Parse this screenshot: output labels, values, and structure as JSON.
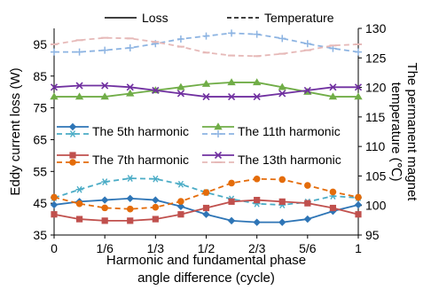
{
  "chart_data": {
    "type": "line",
    "xlabel_lines": [
      "Harmonic and fundamental phase",
      "angle difference (cycle)"
    ],
    "ylabel_left": "Eddy current loss (W)",
    "ylabel_right_lines": [
      "The permanent magnet",
      "temperature (℃)"
    ],
    "x_ticks": [
      {
        "value": 0,
        "label": "0"
      },
      {
        "value": 0.1667,
        "label": "1/6"
      },
      {
        "value": 0.3333,
        "label": "1/3"
      },
      {
        "value": 0.5,
        "label": "1/2"
      },
      {
        "value": 0.6667,
        "label": "2/3"
      },
      {
        "value": 0.8333,
        "label": "5/6"
      },
      {
        "value": 1,
        "label": "1"
      }
    ],
    "xlim": [
      0,
      1
    ],
    "ylim_left": [
      35,
      100
    ],
    "ylim_right": [
      95,
      130
    ],
    "left_ticks": [
      35,
      45,
      55,
      65,
      75,
      85,
      95
    ],
    "right_ticks": [
      95,
      100,
      105,
      110,
      115,
      120,
      125,
      130
    ],
    "style_legend": [
      {
        "label": "Loss",
        "dash": "solid"
      },
      {
        "label": "Temperature",
        "dash": "dashed"
      }
    ],
    "series_legend_rows": [
      [
        {
          "label": "The 5th harmonic",
          "color": "#2E75B6",
          "marker": "diamond"
        },
        {
          "label": "The 11th harmonic",
          "color": "#70AD47",
          "marker": "triangle"
        }
      ],
      [
        {
          "label": "The 7th harmonic",
          "color": "#C0504D",
          "marker": "square"
        },
        {
          "label": "The 13th harmonic",
          "color": "#7030A0",
          "marker": "x"
        }
      ]
    ],
    "x": [
      0,
      0.0833,
      0.1667,
      0.25,
      0.3333,
      0.4167,
      0.5,
      0.5833,
      0.6667,
      0.75,
      0.8333,
      0.9167,
      1
    ],
    "series": [
      {
        "axis": "left",
        "dash": "solid",
        "color": "#2E75B6",
        "marker": "diamond",
        "values": [
          44.5,
          45.5,
          46,
          46.5,
          46,
          44,
          41.5,
          39.5,
          39,
          39,
          40,
          42.5,
          44.5
        ]
      },
      {
        "axis": "right",
        "dash": "dashed",
        "color": "#4BACC6",
        "marker": "asterisk",
        "values": [
          101.3,
          102.7,
          104,
          104.6,
          104.5,
          103.6,
          102.2,
          101.1,
          100.3,
          100.1,
          100.6,
          101.6,
          101.3
        ]
      },
      {
        "axis": "left",
        "dash": "solid",
        "color": "#C0504D",
        "marker": "square",
        "values": [
          41.5,
          40,
          39.5,
          39.5,
          40,
          41.5,
          43.5,
          45.5,
          46,
          45.5,
          45,
          43.5,
          41.5
        ]
      },
      {
        "axis": "right",
        "dash": "dashed",
        "color": "#E46C0A",
        "marker": "circle",
        "values": [
          101.4,
          100.3,
          99.6,
          99.4,
          99.7,
          100.7,
          102.2,
          103.8,
          104.5,
          104.4,
          103.4,
          102.3,
          101.4
        ]
      },
      {
        "axis": "left",
        "dash": "solid",
        "color": "#70AD47",
        "marker": "triangle",
        "values": [
          78.5,
          78.5,
          78.5,
          79.5,
          80.5,
          81.5,
          82.5,
          83,
          83,
          81.5,
          80,
          78.5,
          78.5
        ]
      },
      {
        "axis": "right",
        "dash": "dashed",
        "color": "#8DB4E2",
        "marker": "plus",
        "values": [
          126,
          126,
          126.3,
          126.7,
          127.4,
          128.2,
          128.7,
          129.2,
          129,
          128.3,
          127.4,
          126.6,
          126
        ]
      },
      {
        "axis": "left",
        "dash": "solid",
        "color": "#7030A0",
        "marker": "x",
        "values": [
          81.5,
          82,
          82,
          81.5,
          80.5,
          79.5,
          78.5,
          78.5,
          78.5,
          79.5,
          80.5,
          81.5,
          81.5
        ]
      },
      {
        "axis": "right",
        "dash": "dashed",
        "color": "#E6B9B8",
        "marker": "dash",
        "values": [
          127.3,
          128,
          128.4,
          128.3,
          127.7,
          126.9,
          125.9,
          125.4,
          125.3,
          125.7,
          126.3,
          127.1,
          127.3
        ]
      }
    ]
  }
}
